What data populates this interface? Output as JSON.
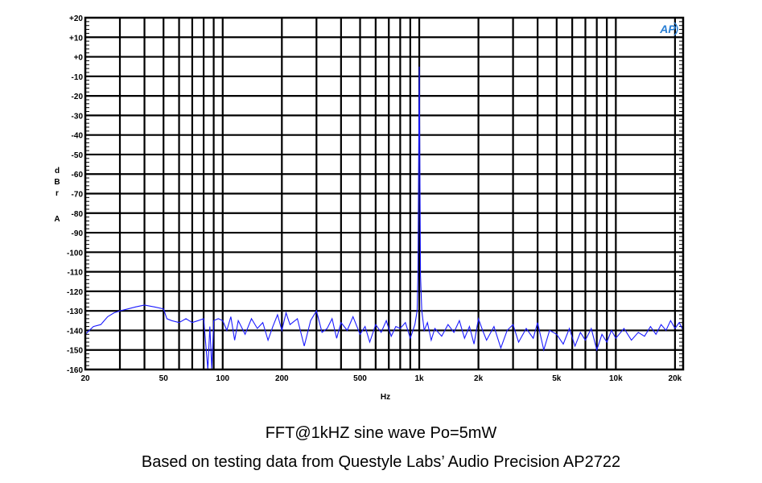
{
  "chart_data": {
    "type": "line",
    "title": "",
    "xlabel": "Hz",
    "ylabel_lines": [
      "d",
      "B",
      "r",
      "",
      "A"
    ],
    "x_scale": "log",
    "xlim": [
      20,
      22000
    ],
    "ylim": [
      -160,
      20
    ],
    "grid": true,
    "x_ticks": [
      {
        "value": 20,
        "label": "20"
      },
      {
        "value": 50,
        "label": "50"
      },
      {
        "value": 100,
        "label": "100"
      },
      {
        "value": 200,
        "label": "200"
      },
      {
        "value": 500,
        "label": "500"
      },
      {
        "value": 1000,
        "label": "1k"
      },
      {
        "value": 2000,
        "label": "2k"
      },
      {
        "value": 5000,
        "label": "5k"
      },
      {
        "value": 10000,
        "label": "10k"
      },
      {
        "value": 20000,
        "label": "20k"
      }
    ],
    "y_ticks": [
      {
        "value": 20,
        "label": "+20"
      },
      {
        "value": 10,
        "label": "+10"
      },
      {
        "value": 0,
        "label": "+0"
      },
      {
        "value": -10,
        "label": "-10"
      },
      {
        "value": -20,
        "label": "-20"
      },
      {
        "value": -30,
        "label": "-30"
      },
      {
        "value": -40,
        "label": "-40"
      },
      {
        "value": -50,
        "label": "-50"
      },
      {
        "value": -60,
        "label": "-60"
      },
      {
        "value": -70,
        "label": "-70"
      },
      {
        "value": -80,
        "label": "-80"
      },
      {
        "value": -90,
        "label": "-90"
      },
      {
        "value": -100,
        "label": "-100"
      },
      {
        "value": -110,
        "label": "-110"
      },
      {
        "value": -120,
        "label": "-120"
      },
      {
        "value": -130,
        "label": "-130"
      },
      {
        "value": -140,
        "label": "-140"
      },
      {
        "value": -150,
        "label": "-150"
      },
      {
        "value": -160,
        "label": "-160"
      }
    ],
    "series": [
      {
        "color": "#1a1aff",
        "points": [
          [
            20,
            -142
          ],
          [
            22,
            -138
          ],
          [
            24,
            -137
          ],
          [
            26,
            -133
          ],
          [
            28,
            -131
          ],
          [
            30,
            -130
          ],
          [
            33,
            -129
          ],
          [
            36,
            -128
          ],
          [
            40,
            -127
          ],
          [
            45,
            -128
          ],
          [
            50,
            -129
          ],
          [
            52,
            -134
          ],
          [
            55,
            -135
          ],
          [
            60,
            -136
          ],
          [
            65,
            -134
          ],
          [
            70,
            -136
          ],
          [
            75,
            -135
          ],
          [
            80,
            -134
          ],
          [
            84,
            -160
          ],
          [
            86,
            -138
          ],
          [
            88,
            -160
          ],
          [
            90,
            -135
          ],
          [
            95,
            -134
          ],
          [
            100,
            -135
          ],
          [
            105,
            -140
          ],
          [
            110,
            -133
          ],
          [
            115,
            -145
          ],
          [
            120,
            -135
          ],
          [
            130,
            -142
          ],
          [
            140,
            -134
          ],
          [
            150,
            -139
          ],
          [
            160,
            -136
          ],
          [
            170,
            -145
          ],
          [
            180,
            -138
          ],
          [
            190,
            -132
          ],
          [
            200,
            -140
          ],
          [
            210,
            -131
          ],
          [
            220,
            -137
          ],
          [
            240,
            -134
          ],
          [
            260,
            -148
          ],
          [
            280,
            -135
          ],
          [
            300,
            -130
          ],
          [
            320,
            -141
          ],
          [
            340,
            -139
          ],
          [
            360,
            -134
          ],
          [
            380,
            -144
          ],
          [
            400,
            -136
          ],
          [
            430,
            -140
          ],
          [
            460,
            -133
          ],
          [
            500,
            -142
          ],
          [
            530,
            -138
          ],
          [
            560,
            -146
          ],
          [
            600,
            -137
          ],
          [
            640,
            -141
          ],
          [
            680,
            -135
          ],
          [
            720,
            -143
          ],
          [
            760,
            -138
          ],
          [
            800,
            -139
          ],
          [
            850,
            -136
          ],
          [
            900,
            -144
          ],
          [
            950,
            -137
          ],
          [
            975,
            -130
          ],
          [
            985,
            -112
          ],
          [
            995,
            -40
          ],
          [
            1000,
            -5
          ],
          [
            1005,
            -40
          ],
          [
            1015,
            -112
          ],
          [
            1030,
            -130
          ],
          [
            1060,
            -140
          ],
          [
            1100,
            -136
          ],
          [
            1150,
            -145
          ],
          [
            1200,
            -139
          ],
          [
            1300,
            -143
          ],
          [
            1400,
            -137
          ],
          [
            1500,
            -141
          ],
          [
            1600,
            -135
          ],
          [
            1700,
            -144
          ],
          [
            1800,
            -138
          ],
          [
            1900,
            -147
          ],
          [
            2000,
            -134
          ],
          [
            2100,
            -140
          ],
          [
            2200,
            -145
          ],
          [
            2400,
            -138
          ],
          [
            2600,
            -149
          ],
          [
            2800,
            -140
          ],
          [
            3000,
            -137
          ],
          [
            3200,
            -146
          ],
          [
            3500,
            -139
          ],
          [
            3800,
            -144
          ],
          [
            4000,
            -136
          ],
          [
            4300,
            -150
          ],
          [
            4600,
            -140
          ],
          [
            5000,
            -142
          ],
          [
            5400,
            -147
          ],
          [
            5800,
            -139
          ],
          [
            6200,
            -148
          ],
          [
            6600,
            -141
          ],
          [
            7000,
            -145
          ],
          [
            7500,
            -139
          ],
          [
            8000,
            -150
          ],
          [
            8500,
            -142
          ],
          [
            9000,
            -146
          ],
          [
            9500,
            -140
          ],
          [
            10000,
            -144
          ],
          [
            11000,
            -139
          ],
          [
            12000,
            -145
          ],
          [
            13000,
            -141
          ],
          [
            14000,
            -143
          ],
          [
            15000,
            -138
          ],
          [
            16000,
            -142
          ],
          [
            17000,
            -137
          ],
          [
            18000,
            -140
          ],
          [
            19000,
            -135
          ],
          [
            20000,
            -139
          ],
          [
            21000,
            -136
          ],
          [
            22000,
            -140
          ]
        ]
      }
    ],
    "logo": "AP",
    "caption_line1": "FFT@1kHZ sine wave Po=5mW",
    "caption_line2": "Based on testing data from Questyle Labs’ Audio Precision AP2722"
  }
}
